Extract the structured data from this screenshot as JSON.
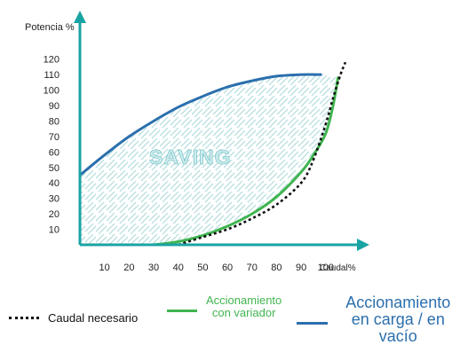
{
  "chart_data": {
    "type": "line",
    "title": "",
    "xlabel": "Caudal%",
    "ylabel": "Potencia %",
    "x_ticks": [
      10,
      20,
      30,
      40,
      50,
      60,
      70,
      80,
      90,
      100
    ],
    "y_ticks": [
      10,
      20,
      30,
      40,
      50,
      60,
      70,
      80,
      90,
      100,
      110,
      120
    ],
    "xlim": [
      0,
      112
    ],
    "ylim": [
      0,
      125
    ],
    "grid": false,
    "legend_position": "bottom",
    "annotation": "SAVING",
    "series": [
      {
        "name": "Caudal necesario",
        "style": "dotted",
        "color": "#111111",
        "x": [
          40,
          50,
          60,
          70,
          80,
          90,
          95,
          100,
          103,
          106,
          108
        ],
        "y": [
          0,
          5,
          10,
          17,
          26,
          40,
          55,
          78,
          95,
          110,
          118
        ]
      },
      {
        "name": "Accionamiento con variador",
        "style": "solid",
        "color": "#40b550",
        "x": [
          30,
          40,
          50,
          60,
          70,
          80,
          90,
          95,
          100,
          103,
          105
        ],
        "y": [
          0,
          2,
          6,
          12,
          20,
          31,
          47,
          58,
          72,
          90,
          108
        ]
      },
      {
        "name": "Accionamiento en carga / en vacío",
        "style": "solid",
        "color": "#2b6fad",
        "x": [
          0,
          10,
          20,
          30,
          40,
          50,
          60,
          70,
          80,
          90,
          98
        ],
        "y": [
          45,
          58,
          70,
          80,
          89,
          96,
          102,
          106,
          109,
          110,
          110
        ]
      }
    ]
  },
  "legend": {
    "caudal_necesario": "Caudal necesario",
    "variador": "Accionamiento\ncon variador",
    "carga": "Accionamiento\nen carga / en vacío"
  },
  "colors": {
    "axis": "#1aa3a3",
    "hatch": "#a8d7d9",
    "saving_fill": "#cfecee",
    "saving_stroke": "#7fc8cb",
    "tick_text": "#222222",
    "legend_blue_text": "#2b6fad",
    "legend_green_text": "#40b550",
    "legend_black_text": "#111111"
  }
}
